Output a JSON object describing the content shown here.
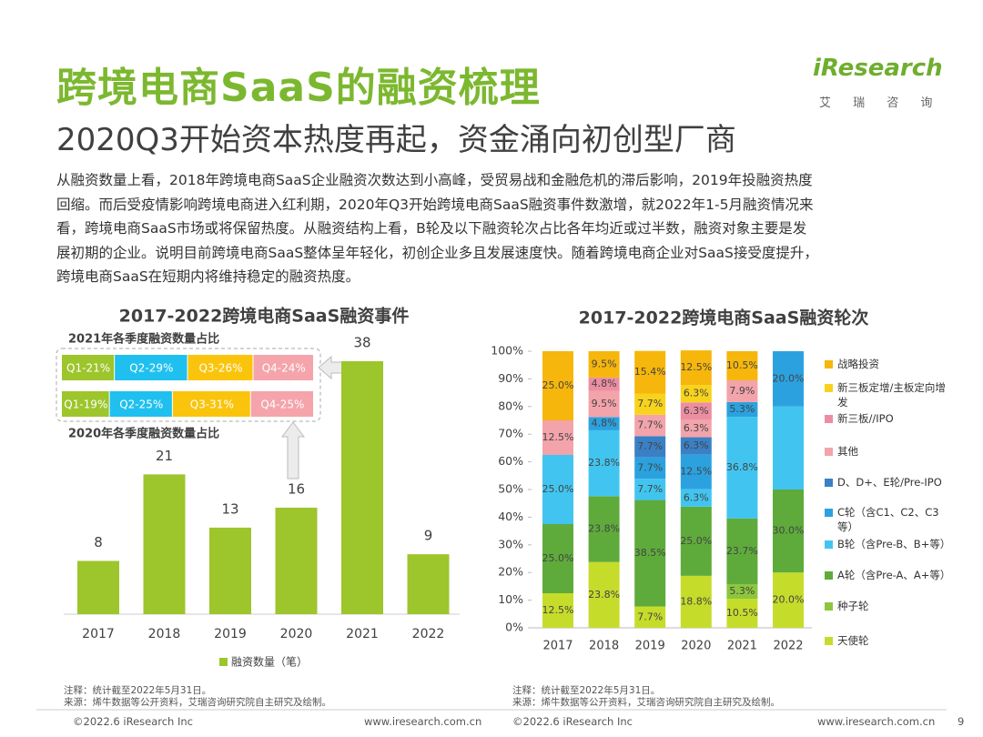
{
  "header": {
    "title": "跨境电商SaaS的融资梳理",
    "subtitle": "2020Q3开始资本热度再起，资金涌向初创型厂商",
    "logo": "iResearch",
    "logo_sub": "艾 瑞 咨 询"
  },
  "body": {
    "lines": [
      "从融资数量上看，2018年跨境电商SaaS企业融资次数达到小高峰，受贸易战和金融危机的滞后影响，2019年投融资热度",
      "回缩。而后受疫情影响跨境电商进入红利期，2020年Q3开始跨境电商SaaS融资事件数激增，就2022年1-5月融资情况来",
      "看，跨境电商SaaS市场或将保留热度。从融资结构上看，B轮及以下融资轮次占比各年均近或过半数，融资对象主要是发",
      "展初期的企业。说明目前跨境电商SaaS整体呈年轻化，初创企业多且发展速度快。随着跨境电商企业对SaaS接受度提升，",
      "跨境电商SaaS在短期内将维持稳定的融资热度。"
    ]
  },
  "chart_data": [
    {
      "type": "bar",
      "title": "2017-2022跨境电商SaaS融资事件",
      "categories": [
        "2017",
        "2018",
        "2019",
        "2020",
        "2021",
        "2022"
      ],
      "series": [
        {
          "name": "融资数量（笔）",
          "color": "#9dc52c",
          "values": [
            8,
            21,
            13,
            16,
            38,
            9
          ]
        }
      ]
    },
    {
      "type": "bar",
      "horizontal": true,
      "stacked": true,
      "categories": [
        "2021年各季度融资数量占比",
        "2020年各季度融资数量占比"
      ],
      "series": [
        {
          "color": "#9dc52c",
          "values": [
            21,
            19
          ],
          "value_labels": [
            "Q1-21%",
            "Q1-19%"
          ]
        },
        {
          "color": "#1fc0ef",
          "values": [
            29,
            25
          ],
          "value_labels": [
            "Q2-29%",
            "Q2-25%"
          ]
        },
        {
          "color": "#fbc40c",
          "values": [
            26,
            31
          ],
          "value_labels": [
            "Q3-26%",
            "Q3-31%"
          ]
        },
        {
          "color": "#f4a4aa",
          "values": [
            24,
            25
          ],
          "value_labels": [
            "Q4-24%",
            "Q4-25%"
          ]
        }
      ]
    },
    {
      "type": "bar",
      "stacked": true,
      "title": "2017-2022跨境电商SaaS融资轮次",
      "categories": [
        "2017",
        "2018",
        "2019",
        "2020",
        "2021",
        "2022"
      ],
      "ylim": [
        0,
        100
      ],
      "yticks": [
        {
          "value": 0,
          "label": "0%"
        },
        {
          "value": 10,
          "label": "10%"
        },
        {
          "value": 20,
          "label": "20%"
        },
        {
          "value": 30,
          "label": "30%"
        },
        {
          "value": 40,
          "label": "40%"
        },
        {
          "value": 50,
          "label": "50%"
        },
        {
          "value": 60,
          "label": "60%"
        },
        {
          "value": 70,
          "label": "70%"
        },
        {
          "value": 80,
          "label": "80%"
        },
        {
          "value": 90,
          "label": "90%"
        },
        {
          "value": 100,
          "label": "100%"
        }
      ],
      "series": [
        {
          "name": "天使轮",
          "color": "#c6dc2b",
          "values": [
            12.5,
            23.8,
            7.7,
            18.8,
            10.5,
            20.0
          ],
          "value_labels": [
            "12.5%",
            "23.8%",
            "7.7%",
            "18.8%",
            "10.5%",
            "20.0%"
          ]
        },
        {
          "name": "种子轮",
          "color": "#8cc63e",
          "values": [
            null,
            null,
            null,
            null,
            5.3,
            null
          ],
          "value_labels": [
            null,
            null,
            null,
            null,
            "5.3%",
            null
          ]
        },
        {
          "name": "A轮（含Pre-A、A+等）",
          "color": "#5eab3b",
          "values": [
            25.0,
            23.8,
            38.5,
            25.0,
            23.7,
            30.0
          ],
          "value_labels": [
            "25.0%",
            "23.8%",
            "38.5%",
            "25.0%",
            "23.7%",
            "30.0%"
          ]
        },
        {
          "name": "B轮（含Pre-B、B+等）",
          "color": "#41c5f0",
          "values": [
            25.0,
            23.8,
            7.7,
            6.3,
            36.8,
            30
          ],
          "value_labels": [
            "25.0%",
            "23.8%",
            "7.7%",
            "6.3%",
            "36.8%",
            null
          ]
        },
        {
          "name": "C轮（含C1、C2、C3等）",
          "color": "#2ba2df",
          "values": [
            null,
            4.8,
            7.7,
            12.5,
            5.3,
            20.0
          ],
          "value_labels": [
            null,
            "4.8%",
            "7.7%",
            "12.5%",
            "5.3%",
            "20.0%"
          ]
        },
        {
          "name": "D、D+、E轮/Pre-IPO",
          "color": "#3a80c5",
          "values": [
            null,
            null,
            7.7,
            6.3,
            null,
            null
          ],
          "value_labels": [
            null,
            null,
            "7.7%",
            "6.3%",
            null,
            null
          ]
        },
        {
          "name": "其他",
          "color": "#f3a3aa",
          "values": [
            12.5,
            9.5,
            7.7,
            6.3,
            7.9,
            null
          ],
          "value_labels": [
            "12.5%",
            "9.5%",
            "7.7%",
            "6.3%",
            "7.9%",
            null
          ]
        },
        {
          "name": "新三板//IPO",
          "color": "#ec8ea2",
          "values": [
            null,
            4.8,
            null,
            6.3,
            null,
            null
          ],
          "value_labels": [
            null,
            "4.8%",
            null,
            "6.3%",
            null,
            null
          ]
        },
        {
          "name": "新三板定增/主板定向增发",
          "color": "#f8d31d",
          "values": [
            null,
            null,
            7.7,
            6.3,
            null,
            null
          ],
          "value_labels": [
            null,
            null,
            "7.7%",
            "6.3%",
            null,
            null
          ]
        },
        {
          "name": "战略投资",
          "color": "#f6b60b",
          "values": [
            25.0,
            9.5,
            15.4,
            12.5,
            10.5,
            null
          ],
          "value_labels": [
            "25.0%",
            "9.5%",
            "15.4%",
            "12.5%",
            "10.5%",
            null
          ]
        }
      ]
    }
  ],
  "notes": {
    "left": [
      "注释：统计截至2022年5月31日。",
      "来源：烯牛数据等公开资料，艾瑞咨询研究院自主研究及绘制。"
    ],
    "right": [
      "注释：统计截至2022年5月31日。",
      "来源：烯牛数据等公开资料，艾瑞咨询研究院自主研究及绘制。"
    ]
  },
  "footer": {
    "left_copyright": "©2022.6 iResearch Inc",
    "left_url": "www.iresearch.com.cn",
    "right_copyright": "©2022.6 iResearch Inc",
    "right_url": "www.iresearch.com.cn",
    "page": 9
  }
}
